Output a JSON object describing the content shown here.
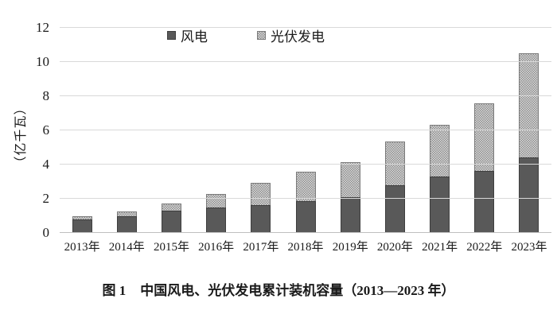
{
  "figure": {
    "caption_label": "图 1",
    "caption_text": "中国风电、光伏发电累计装机容量（2013—2023 年）"
  },
  "chart_data": {
    "type": "bar",
    "stacked": true,
    "title": "",
    "xlabel": "",
    "ylabel": "（亿千瓦）",
    "ylim": [
      0,
      12
    ],
    "yticks": [
      0,
      2,
      4,
      6,
      8,
      10,
      12
    ],
    "grid": true,
    "legend_position": "top",
    "categories": [
      "2013年",
      "2014年",
      "2015年",
      "2016年",
      "2017年",
      "2018年",
      "2019年",
      "2020年",
      "2021年",
      "2022年",
      "2023年"
    ],
    "series": [
      {
        "name": "风电",
        "values": [
          0.77,
          0.96,
          1.29,
          1.49,
          1.64,
          1.84,
          2.1,
          2.81,
          3.28,
          3.65,
          4.41
        ],
        "color": "#595959",
        "pattern": "solid"
      },
      {
        "name": "光伏发电",
        "values": [
          0.19,
          0.28,
          0.43,
          0.77,
          1.3,
          1.74,
          2.04,
          2.53,
          3.06,
          3.93,
          6.09
        ],
        "color": "#dcdcdc",
        "pattern": "checker-dots"
      }
    ]
  },
  "colors": {
    "wind_bar": "#595959",
    "pv_base": "#dcdcdc",
    "pv_dots": "#8c8c8c",
    "gridline": "#d9d9d9",
    "axis_line": "#bfbfbf",
    "text": "#1a1a1a"
  }
}
